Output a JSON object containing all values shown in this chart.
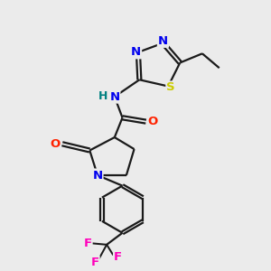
{
  "bg_color": "#ebebeb",
  "bond_color": "#1a1a1a",
  "atom_colors": {
    "N": "#0000ee",
    "O": "#ff2200",
    "S": "#cccc00",
    "F": "#ff00bb",
    "H": "#008080",
    "C": "#1a1a1a"
  },
  "font_size": 9.5,
  "lw": 1.6
}
